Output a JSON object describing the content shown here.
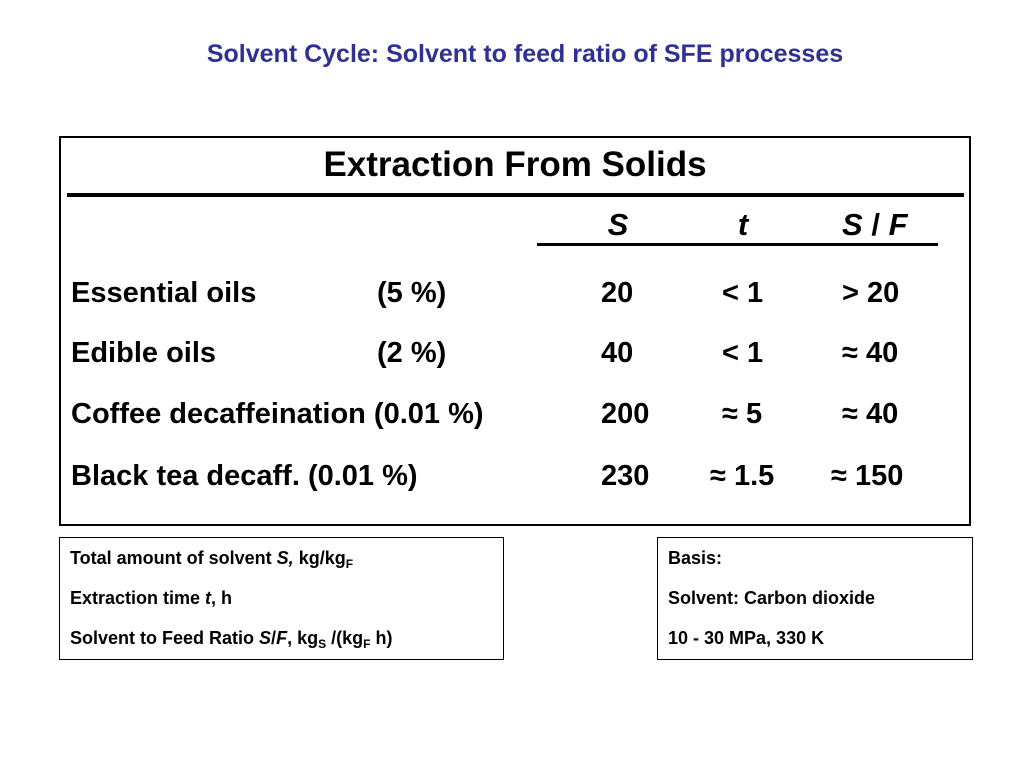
{
  "title": "Solvent Cycle: Solvent to feed ratio of SFE processes",
  "table": {
    "heading": "Extraction From Solids",
    "columns": {
      "s": "S",
      "t": "t",
      "sf_s": "S",
      "sf_sep": "/",
      "sf_f": "F"
    },
    "rows": [
      {
        "name": "Essential oils",
        "content": "(5 %)",
        "s": "20",
        "t": "< 1",
        "sf": "> 20"
      },
      {
        "name": "Edible oils",
        "content": "(2 %)",
        "s": "40",
        "t": "< 1",
        "sf": "≈ 40"
      },
      {
        "name": "Coffee decaffeination (0.01 %)",
        "content": "",
        "s": "200",
        "t": "≈ 5",
        "sf": "≈ 40"
      },
      {
        "name": "Black tea decaff. (0.01 %)",
        "content": "",
        "s": "230",
        "t": "≈ 1.5",
        "sf": "≈ 150"
      }
    ]
  },
  "legend": {
    "line1": {
      "text": "Total amount of solvent ",
      "symbol": "S,",
      "unit": " kg/kg",
      "sub": "F"
    },
    "line2": {
      "text": "Extraction time ",
      "symbol": "t",
      "unit": ", h"
    },
    "line3": {
      "text": "Solvent to Feed Ratio ",
      "symbol_s": "S",
      "sep": "/",
      "symbol_f": "F",
      "unit_a": ", kg",
      "sub_a": "S",
      "unit_b": " /(kg",
      "sub_b": "F",
      "unit_c": " h)"
    }
  },
  "basis": {
    "line1": "Basis:",
    "line2": "Solvent: Carbon dioxide",
    "line3": "10 - 30 MPa,  330 K"
  }
}
